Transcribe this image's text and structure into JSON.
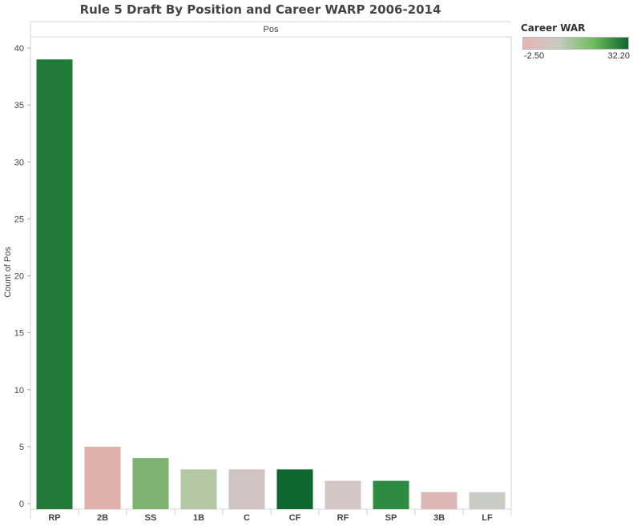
{
  "chart_data": {
    "type": "bar",
    "title": "Rule 5 Draft By Position and Career WARP 2006-2014",
    "column_header": "Pos",
    "xlabel": "",
    "ylabel": "Count of Pos",
    "ylim": [
      0,
      41
    ],
    "yticks": [
      0,
      5,
      10,
      15,
      20,
      25,
      30,
      35,
      40
    ],
    "categories": [
      "RP",
      "2B",
      "SS",
      "1B",
      "C",
      "CF",
      "RF",
      "SP",
      "3B",
      "LF"
    ],
    "values": [
      39,
      5,
      4,
      3,
      3,
      3,
      2,
      2,
      1,
      1
    ],
    "colors": [
      "#217a38",
      "#e0b0ab",
      "#7db270",
      "#b5c8a6",
      "#d1c3c2",
      "#0e6630",
      "#d3c6c5",
      "#2e8b42",
      "#dbb6b3",
      "#c7ccc4"
    ],
    "grid": false,
    "legend": {
      "title": "Career WAR",
      "min_label": "-2.50",
      "max_label": "32.20",
      "gradient": [
        "#e8b4b0",
        "#c8cbc3",
        "#6fbd5c",
        "#0e6630"
      ],
      "position": "top-right"
    }
  }
}
